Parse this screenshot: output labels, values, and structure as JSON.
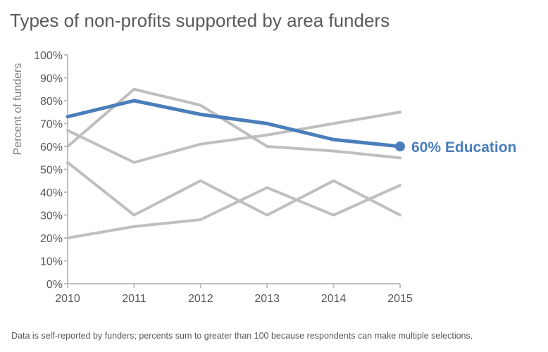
{
  "title": "Types of non-profits supported by area funders",
  "footnote": "Data is self-reported by funders; percents sum to greater than 100 because respondents can make multiple selections.",
  "colors": {
    "highlight": "#4a7ebb",
    "context": "#bfbfbf",
    "axis": "#bfbfbf",
    "text": "#595959"
  },
  "chart_data": {
    "type": "line",
    "title": "Types of non-profits supported by area funders",
    "xlabel": "",
    "ylabel": "Percent of funders",
    "x": [
      2010,
      2011,
      2012,
      2013,
      2014,
      2015
    ],
    "x_tick_labels": [
      "2010",
      "2011",
      "2012",
      "2013",
      "2014",
      "2015"
    ],
    "ylim": [
      0,
      100
    ],
    "y_ticks": [
      0,
      10,
      20,
      30,
      40,
      50,
      60,
      70,
      80,
      90,
      100
    ],
    "y_tick_labels": [
      "0%",
      "10%",
      "20%",
      "30%",
      "40%",
      "50%",
      "60%",
      "70%",
      "80%",
      "90%",
      "100%"
    ],
    "grid": false,
    "series": [
      {
        "values": [
          60,
          85,
          78,
          60,
          58,
          55
        ],
        "highlight": false
      },
      {
        "values": [
          67,
          53,
          61,
          65,
          70,
          75
        ],
        "highlight": false
      },
      {
        "values": [
          53,
          30,
          45,
          30,
          45,
          30
        ],
        "highlight": false
      },
      {
        "values": [
          20,
          25,
          28,
          42,
          30,
          43
        ],
        "highlight": false
      },
      {
        "name": "Education",
        "values": [
          73,
          80,
          74,
          70,
          63,
          60
        ],
        "highlight": true
      }
    ],
    "annotation": {
      "series": "Education",
      "label": "60% Education"
    }
  }
}
